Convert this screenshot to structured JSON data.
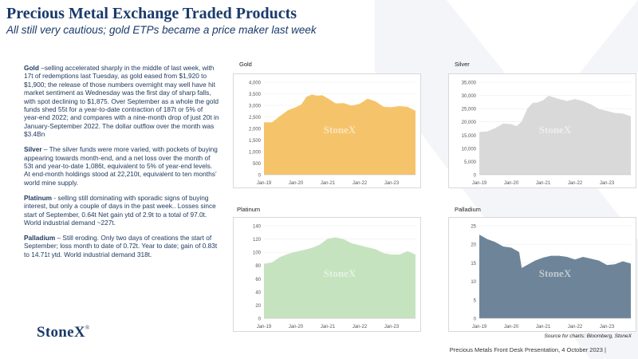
{
  "header": {
    "title": "Precious Metal Exchange Traded Products",
    "subtitle": "All still very cautious; gold ETPs became a price maker last week"
  },
  "commentary": {
    "gold_lead": "Gold",
    "gold_text": " –selling accelerated sharply in the middle of last week, with 17t of redemptions last Tuesday, as gold eased from $1,920 to $1,900; the release of those numbers overnight may well have hit market sentiment as Wednesday was the first day of sharp falls, with spot declining to $1,875.  Over September as a whole the gold funds shed 55t for a year-to-date contraction of 187t or 5% of year-end 2022; and compares with a nine-month  drop of just 20t in January-September  2022.  The dollar outflow over the month was $3.4Bn",
    "silver_lead": "Silver",
    "silver_text": " – The silver funds were more varied, with pockets of buying appearing towards month-end, and a net loss over the month of 53t and year-to-date 1,086t, equivalent to 5% of year-end levels.  At end-month holdings stood at 22,210t, equivalent to ten months’ world mine supply.",
    "platinum_lead": "Platinum",
    "platinum_text": " - selling still dominating with sporadic signs of buying interest, but only a couple of days in the past week..  Losses since start of September, 0.64t Net gain ytd of 2.9t to a total of 97.0t.   World industrial demand ~227t.",
    "palladium_lead": "Palladium",
    "palladium_text": " – Still eroding.  Only two days of creations the start of September; loss month to date of 0.72t.  Year to date; gain of 0.83t to 14.71t ytd.  World industrial demand 318t."
  },
  "logo": {
    "text": "StoneX",
    "mark": "®"
  },
  "watermark_text": "StoneX",
  "source_note": "Source for charts: Bloomberg, StoneX",
  "footer": "Precious Metals Front Desk Presentation, 4 October 2023 |",
  "colors": {
    "title": "#1a3a6b",
    "gold": "#f5c46a",
    "silver": "#d9d9d9",
    "platinum": "#c6e3c0",
    "palladium": "#6e8599"
  },
  "chart_data": [
    {
      "type": "area",
      "title": "Gold",
      "color": "#f5c46a",
      "xlabels": [
        "Jan-19",
        "Jan-20",
        "Jan-21",
        "Jan-22",
        "Jan-23"
      ],
      "x": [
        2019.0,
        2019.25,
        2019.5,
        2019.75,
        2020.0,
        2020.17,
        2020.33,
        2020.5,
        2020.67,
        2020.83,
        2021.0,
        2021.25,
        2021.5,
        2021.75,
        2022.0,
        2022.25,
        2022.5,
        2022.75,
        2023.0,
        2023.25,
        2023.5,
        2023.75
      ],
      "y": [
        2250,
        2280,
        2520,
        2800,
        2900,
        3050,
        3350,
        3480,
        3400,
        3450,
        3280,
        3100,
        3080,
        3000,
        3050,
        3300,
        3150,
        2950,
        2900,
        2980,
        2920,
        2780
      ],
      "xlim": [
        2019.0,
        2023.75
      ],
      "ylim": [
        0,
        4000
      ],
      "yticks": [
        "0",
        "500",
        "1,000",
        "1,500",
        "2,000",
        "2,500",
        "3,000",
        "3,500",
        "4,000"
      ],
      "watermark": "StoneX"
    },
    {
      "type": "area",
      "title": "Silver",
      "color": "#d9d9d9",
      "xlabels": [
        "Jan-19",
        "Jan-20",
        "Jan-21",
        "Jan-22",
        "Jan-23"
      ],
      "x": [
        2019.0,
        2019.25,
        2019.5,
        2019.75,
        2020.0,
        2020.17,
        2020.33,
        2020.5,
        2020.67,
        2020.83,
        2021.0,
        2021.17,
        2021.5,
        2021.75,
        2022.0,
        2022.25,
        2022.5,
        2022.75,
        2023.0,
        2023.25,
        2023.5,
        2023.75
      ],
      "y": [
        16000,
        16500,
        17500,
        19500,
        19000,
        18500,
        20000,
        25000,
        27000,
        27500,
        28000,
        30000,
        28500,
        28000,
        28500,
        28000,
        26500,
        25000,
        24000,
        23500,
        23000,
        22210
      ],
      "xlim": [
        2019.0,
        2023.75
      ],
      "ylim": [
        0,
        35000
      ],
      "yticks": [
        "0",
        "5,000",
        "10,000",
        "15,000",
        "20,000",
        "25,000",
        "30,000",
        "35,000"
      ],
      "watermark": "StoneX"
    },
    {
      "type": "area",
      "title": "Platinum",
      "color": "#c6e3c0",
      "xlabels": [
        "Jan-19",
        "Jan-20",
        "Jan-21",
        "Jan-22",
        "Jan-23"
      ],
      "x": [
        2019.0,
        2019.25,
        2019.5,
        2019.75,
        2020.0,
        2020.25,
        2020.5,
        2020.75,
        2021.0,
        2021.25,
        2021.5,
        2021.75,
        2022.0,
        2022.25,
        2022.5,
        2022.75,
        2023.0,
        2023.25,
        2023.5,
        2023.75
      ],
      "y": [
        82,
        85,
        92,
        98,
        100,
        104,
        106,
        112,
        120,
        123,
        119,
        114,
        110,
        108,
        104,
        99,
        96,
        97,
        101,
        97
      ],
      "xlim": [
        2019.0,
        2023.75
      ],
      "ylim": [
        0,
        140
      ],
      "yticks": [
        "0",
        "20",
        "40",
        "60",
        "80",
        "100",
        "120",
        "140"
      ],
      "watermark": "StoneX"
    },
    {
      "type": "area",
      "title": "Palladium",
      "color": "#6e8599",
      "xlabels": [
        "Jan-19",
        "Jan-20",
        "Jan-21",
        "Jan-22",
        "Jan-23"
      ],
      "x": [
        2019.0,
        2019.25,
        2019.5,
        2019.75,
        2020.0,
        2020.25,
        2020.33,
        2020.5,
        2020.75,
        2021.0,
        2021.25,
        2021.5,
        2021.75,
        2022.0,
        2022.25,
        2022.5,
        2022.75,
        2023.0,
        2023.25,
        2023.5,
        2023.75
      ],
      "y": [
        22.5,
        21.5,
        20.5,
        19.5,
        19.0,
        18.0,
        13.5,
        14.5,
        15.5,
        16.5,
        16.8,
        17.0,
        16.5,
        16.0,
        16.5,
        16.2,
        15.5,
        14.5,
        14.5,
        15.5,
        14.7
      ],
      "xlim": [
        2019.0,
        2023.75
      ],
      "ylim": [
        0,
        25
      ],
      "yticks": [
        "0",
        "5",
        "10",
        "15",
        "20",
        "25"
      ],
      "watermark": "StoneX"
    }
  ]
}
